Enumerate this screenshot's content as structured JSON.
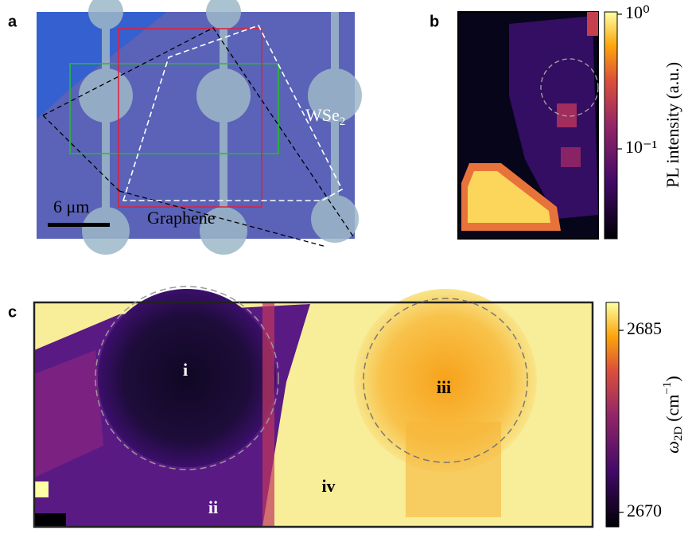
{
  "figure": {
    "panel_a": {
      "letter": "a",
      "material_label": "WSe",
      "material_sub": "2",
      "graphene_label": "Graphene",
      "scale_bar": "6 μm"
    },
    "panel_b": {
      "letter": "b",
      "colorbar": {
        "label": "PL intensity (a.u.)",
        "log": true,
        "ylim": [
          0.0215,
          1.04
        ],
        "ticks": [
          {
            "value": 1,
            "label": "10⁰"
          },
          {
            "value": 0.1,
            "label": "10⁻¹"
          }
        ]
      }
    },
    "panel_c": {
      "letter": "c",
      "regions": [
        "i",
        "ii",
        "iii",
        "iv"
      ],
      "colorbar": {
        "symbol": "ω",
        "symbol_sub": "2D",
        "unit": "(cm",
        "unit_sup": "−1",
        "unit_close": ")",
        "log": false,
        "ylim": [
          2668.8,
          2687.3
        ],
        "ticks": [
          2685,
          2670
        ]
      }
    }
  }
}
